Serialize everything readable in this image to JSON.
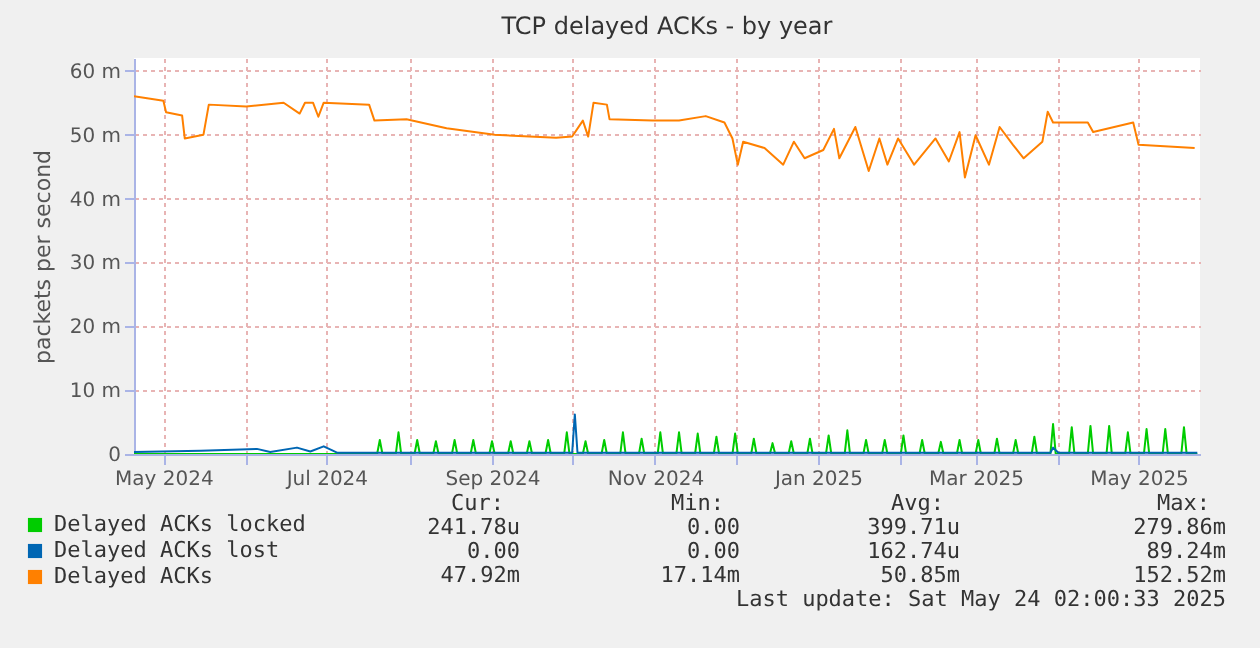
{
  "chart_data": {
    "type": "line",
    "title": "TCP delayed ACKs - by year",
    "ylabel": "packets per second",
    "xlim": [
      "2024-04-20",
      "2025-05-24"
    ],
    "xticks": [
      {
        "value": "2024-05-01",
        "label": "May 2024"
      },
      {
        "value": "2024-06-01",
        "label": null
      },
      {
        "value": "2024-07-01",
        "label": "Jul 2024"
      },
      {
        "value": "2024-08-01",
        "label": null
      },
      {
        "value": "2024-09-01",
        "label": "Sep 2024"
      },
      {
        "value": "2024-10-01",
        "label": null
      },
      {
        "value": "2024-11-01",
        "label": "Nov 2024"
      },
      {
        "value": "2024-12-01",
        "label": null
      },
      {
        "value": "2025-01-01",
        "label": "Jan 2025"
      },
      {
        "value": "2025-02-01",
        "label": null
      },
      {
        "value": "2025-03-01",
        "label": "Mar 2025"
      },
      {
        "value": "2025-04-01",
        "label": null
      },
      {
        "value": "2025-05-01",
        "label": "May 2025"
      }
    ],
    "ylim": [
      0,
      62
    ],
    "yticks": [
      0,
      {
        "value": 10,
        "label": "10 m"
      },
      {
        "value": 20,
        "label": "20 m"
      },
      {
        "value": 30,
        "label": "30 m"
      },
      {
        "value": 40,
        "label": "40 m"
      },
      {
        "value": 50,
        "label": "50 m"
      },
      {
        "value": 60,
        "label": "60 m"
      }
    ],
    "grid": true,
    "legend": "bottom left",
    "series": [
      {
        "name": "Delayed ACKs locked",
        "color": "#00cc00",
        "x": [
          "2024-04-20",
          "2024-07-20",
          "2024-07-21",
          "2024-07-22",
          "2024-07-27",
          "2024-07-28",
          "2024-07-29",
          "2024-08-03",
          "2024-08-04",
          "2024-08-05",
          "2024-08-10",
          "2024-08-11",
          "2024-08-12",
          "2024-08-17",
          "2024-08-18",
          "2024-08-19",
          "2024-08-24",
          "2024-08-25",
          "2024-08-26",
          "2024-08-31",
          "2024-09-01",
          "2024-09-02",
          "2024-09-07",
          "2024-09-08",
          "2024-09-09",
          "2024-09-14",
          "2024-09-15",
          "2024-09-16",
          "2024-09-21",
          "2024-09-22",
          "2024-09-23",
          "2024-09-28",
          "2024-09-29",
          "2024-09-30",
          "2024-10-05",
          "2024-10-06",
          "2024-10-07",
          "2024-10-12",
          "2024-10-13",
          "2024-10-14",
          "2024-10-19",
          "2024-10-20",
          "2024-10-21",
          "2024-10-26",
          "2024-10-27",
          "2024-10-28",
          "2024-11-02",
          "2024-11-03",
          "2024-11-04",
          "2024-11-09",
          "2024-11-10",
          "2024-11-11",
          "2024-11-16",
          "2024-11-17",
          "2024-11-18",
          "2024-11-23",
          "2024-11-24",
          "2024-11-25",
          "2024-11-30",
          "2024-12-01",
          "2024-12-02",
          "2024-12-07",
          "2024-12-08",
          "2024-12-09",
          "2024-12-14",
          "2024-12-15",
          "2024-12-16",
          "2024-12-21",
          "2024-12-22",
          "2024-12-23",
          "2024-12-28",
          "2024-12-29",
          "2024-12-30",
          "2025-01-04",
          "2025-01-05",
          "2025-01-06",
          "2025-01-11",
          "2025-01-12",
          "2025-01-13",
          "2025-01-18",
          "2025-01-19",
          "2025-01-20",
          "2025-01-25",
          "2025-01-26",
          "2025-01-27",
          "2025-02-01",
          "2025-02-02",
          "2025-02-03",
          "2025-02-08",
          "2025-02-09",
          "2025-02-10",
          "2025-02-15",
          "2025-02-16",
          "2025-02-17",
          "2025-02-22",
          "2025-02-23",
          "2025-02-24",
          "2025-03-01",
          "2025-03-02",
          "2025-03-03",
          "2025-03-08",
          "2025-03-09",
          "2025-03-10",
          "2025-03-15",
          "2025-03-16",
          "2025-03-17",
          "2025-03-22",
          "2025-03-23",
          "2025-03-24",
          "2025-03-29",
          "2025-03-30",
          "2025-03-31",
          "2025-04-05",
          "2025-04-06",
          "2025-04-07",
          "2025-04-12",
          "2025-04-13",
          "2025-04-14",
          "2025-04-19",
          "2025-04-20",
          "2025-04-21",
          "2025-04-26",
          "2025-04-27",
          "2025-04-28",
          "2025-05-03",
          "2025-05-04",
          "2025-05-05",
          "2025-05-10",
          "2025-05-11",
          "2025-05-12",
          "2025-05-17",
          "2025-05-18",
          "2025-05-19",
          "2025-05-23"
        ],
        "values": [
          0,
          0,
          2.2,
          0,
          0,
          3.4,
          0,
          0,
          2.2,
          0,
          0,
          2.0,
          0,
          0,
          2.2,
          0,
          0,
          2.2,
          0,
          0,
          2.0,
          0,
          0,
          2.0,
          0,
          0,
          2.0,
          0,
          0,
          2.2,
          0,
          0,
          3.4,
          0,
          0,
          2.0,
          0,
          0,
          2.2,
          0,
          0,
          3.4,
          0,
          0,
          2.4,
          0,
          0,
          3.4,
          0,
          0,
          3.4,
          0,
          0,
          3.2,
          0,
          0,
          2.7,
          0,
          0,
          3.2,
          0,
          0,
          2.4,
          0,
          0,
          1.7,
          0,
          0,
          2.0,
          0,
          0,
          2.4,
          0,
          0,
          2.9,
          0,
          0,
          3.7,
          0,
          0,
          2.2,
          0,
          0,
          2.2,
          0,
          0,
          2.9,
          0,
          0,
          2.2,
          0,
          0,
          1.9,
          0,
          0,
          2.2,
          0,
          0,
          2.2,
          0,
          0,
          2.4,
          0,
          0,
          2.2,
          0,
          0,
          2.7,
          0,
          0,
          4.7,
          0,
          0,
          4.2,
          0,
          0,
          4.4,
          0,
          0,
          4.4,
          0,
          0,
          3.4,
          0,
          0,
          3.9,
          0,
          0,
          3.9,
          0,
          0,
          4.2,
          0,
          0
        ]
      },
      {
        "name": "Delayed ACKs lost",
        "color": "#0066b3",
        "x": [
          "2024-04-20",
          "2024-05-15",
          "2024-06-05",
          "2024-06-10",
          "2024-06-20",
          "2024-06-25",
          "2024-06-30",
          "2024-07-05",
          "2024-10-01",
          "2024-10-02",
          "2024-10-03",
          "2025-03-29",
          "2025-03-30",
          "2025-04-01",
          "2025-05-23"
        ],
        "values": [
          0.3,
          0.5,
          0.8,
          0.3,
          1.0,
          0.4,
          1.2,
          0.2,
          0.2,
          6.2,
          0.2,
          0.2,
          1.0,
          0.2,
          0.2
        ]
      },
      {
        "name": "Delayed ACKs",
        "color": "#ff8000",
        "x": [
          "2024-04-20",
          "2024-05-01",
          "2024-05-02",
          "2024-05-08",
          "2024-05-09",
          "2024-05-16",
          "2024-05-18",
          "2024-06-01",
          "2024-06-15",
          "2024-06-21",
          "2024-06-23",
          "2024-06-26",
          "2024-06-28",
          "2024-06-30",
          "2024-07-17",
          "2024-07-19",
          "2024-07-31",
          "2024-08-15",
          "2024-09-02",
          "2024-09-15",
          "2024-09-25",
          "2024-10-01",
          "2024-10-05",
          "2024-10-07",
          "2024-10-09",
          "2024-10-14",
          "2024-10-15",
          "2024-10-31",
          "2024-11-10",
          "2024-11-20",
          "2024-11-27",
          "2024-11-30",
          "2024-12-02",
          "2024-12-04",
          "2024-12-12",
          "2024-12-19",
          "2024-12-23",
          "2024-12-27",
          "2025-01-03",
          "2025-01-07",
          "2025-01-09",
          "2025-01-15",
          "2025-01-20",
          "2025-01-24",
          "2025-01-27",
          "2025-01-31",
          "2025-02-06",
          "2025-02-14",
          "2025-02-19",
          "2025-02-23",
          "2025-02-25",
          "2025-03-01",
          "2025-03-06",
          "2025-03-10",
          "2025-03-15",
          "2025-03-19",
          "2025-03-26",
          "2025-03-28",
          "2025-03-30",
          "2025-04-12",
          "2025-04-14",
          "2025-04-29",
          "2025-05-01",
          "2025-05-22"
        ],
        "values": [
          56.0,
          55.3,
          53.5,
          53.0,
          49.4,
          50.0,
          54.7,
          54.4,
          55.0,
          53.3,
          55.0,
          55.0,
          52.8,
          55.0,
          54.7,
          52.2,
          52.4,
          51.0,
          50.0,
          49.7,
          49.5,
          49.7,
          52.2,
          49.7,
          55.0,
          54.7,
          52.4,
          52.2,
          52.2,
          52.9,
          51.9,
          49.4,
          45.3,
          48.9,
          47.9,
          45.3,
          48.9,
          46.3,
          47.6,
          50.9,
          46.3,
          51.2,
          44.3,
          49.4,
          45.3,
          49.4,
          45.3,
          49.4,
          45.8,
          50.4,
          43.3,
          49.9,
          45.3,
          51.2,
          48.4,
          46.3,
          48.9,
          53.6,
          51.9,
          51.9,
          50.4,
          51.9,
          48.4,
          47.9
        ]
      }
    ],
    "annotations": [
      "Cur:",
      "Min:",
      "Avg:",
      "Max:",
      "241.78u",
      "0.00",
      "399.71u",
      "279.86m",
      "0.00",
      "0.00",
      "162.74u",
      "89.24m",
      "47.92m",
      "17.14m",
      "50.85m",
      "152.52m",
      "Last update: Sat May 24 02:00:33 2025"
    ]
  }
}
